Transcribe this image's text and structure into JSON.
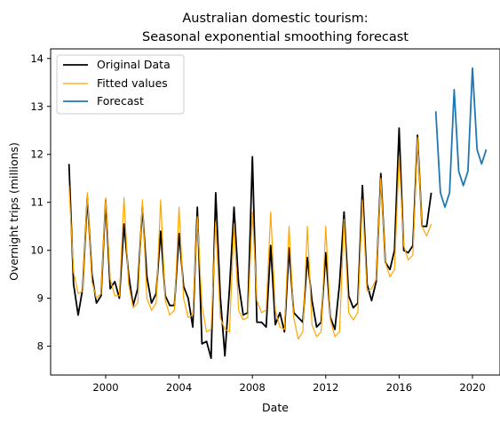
{
  "chart_data": {
    "type": "line",
    "title_lines": [
      "Australian domestic tourism:",
      "Seasonal exponential smoothing forecast"
    ],
    "xlabel": "Date",
    "ylabel": "Overnight trips (millions)",
    "xlim": [
      1997.0,
      2021.5
    ],
    "ylim": [
      7.4,
      14.2
    ],
    "x_ticks": [
      2000,
      2004,
      2008,
      2012,
      2016,
      2020
    ],
    "y_ticks": [
      8,
      9,
      10,
      11,
      12,
      13,
      14
    ],
    "grid": false,
    "legend_placement": "top-left",
    "series": [
      {
        "name": "Original Data",
        "color": "#000000",
        "x_start": 1998.0,
        "x_step": 0.25,
        "values": [
          11.8,
          9.3,
          8.65,
          9.2,
          11.1,
          9.5,
          8.9,
          9.05,
          11.05,
          9.2,
          9.35,
          9.0,
          10.55,
          9.5,
          8.85,
          9.2,
          10.9,
          9.45,
          8.9,
          9.1,
          10.4,
          9.05,
          8.85,
          8.85,
          10.35,
          9.25,
          9.0,
          8.4,
          10.9,
          8.05,
          8.1,
          7.75,
          11.2,
          9.05,
          7.8,
          9.2,
          10.9,
          9.3,
          8.65,
          8.7,
          11.95,
          8.5,
          8.5,
          8.4,
          10.1,
          8.45,
          8.7,
          8.3,
          10.05,
          8.7,
          8.6,
          8.5,
          9.85,
          8.95,
          8.4,
          8.5,
          9.95,
          8.6,
          8.35,
          9.3,
          10.8,
          9.05,
          8.8,
          8.9,
          11.35,
          9.3,
          8.95,
          9.35,
          11.6,
          9.75,
          9.6,
          10.0,
          12.55,
          10.0,
          9.95,
          10.1,
          12.4,
          10.5,
          10.5,
          11.2
        ]
      },
      {
        "name": "Fitted values",
        "color": "#ffa500",
        "x_start": 1998.0,
        "x_step": 0.25,
        "values": [
          11.35,
          9.55,
          9.1,
          9.15,
          11.2,
          9.35,
          9.0,
          9.1,
          11.1,
          9.4,
          9.05,
          9.05,
          11.1,
          9.3,
          8.8,
          8.9,
          11.05,
          9.0,
          8.75,
          8.9,
          11.05,
          8.95,
          8.65,
          8.75,
          10.9,
          9.0,
          8.6,
          8.65,
          10.7,
          8.85,
          8.3,
          8.35,
          10.6,
          8.6,
          8.35,
          8.3,
          10.55,
          8.75,
          8.55,
          8.6,
          10.8,
          8.95,
          8.7,
          8.75,
          10.8,
          8.75,
          8.4,
          8.35,
          10.5,
          8.6,
          8.15,
          8.3,
          10.5,
          8.45,
          8.2,
          8.3,
          10.5,
          8.55,
          8.2,
          8.3,
          10.65,
          8.7,
          8.55,
          8.7,
          11.05,
          9.15,
          9.2,
          9.4,
          11.5,
          9.75,
          9.45,
          9.6,
          11.95,
          10.1,
          9.8,
          9.9,
          12.35,
          10.5,
          10.3,
          10.55
        ]
      },
      {
        "name": "Forecast",
        "color": "#1f77b4",
        "x_start": 2018.0,
        "x_step": 0.25,
        "values": [
          12.9,
          11.2,
          10.9,
          11.2,
          13.35,
          11.65,
          11.35,
          11.65,
          13.8,
          12.1,
          11.8,
          12.1
        ]
      }
    ]
  }
}
